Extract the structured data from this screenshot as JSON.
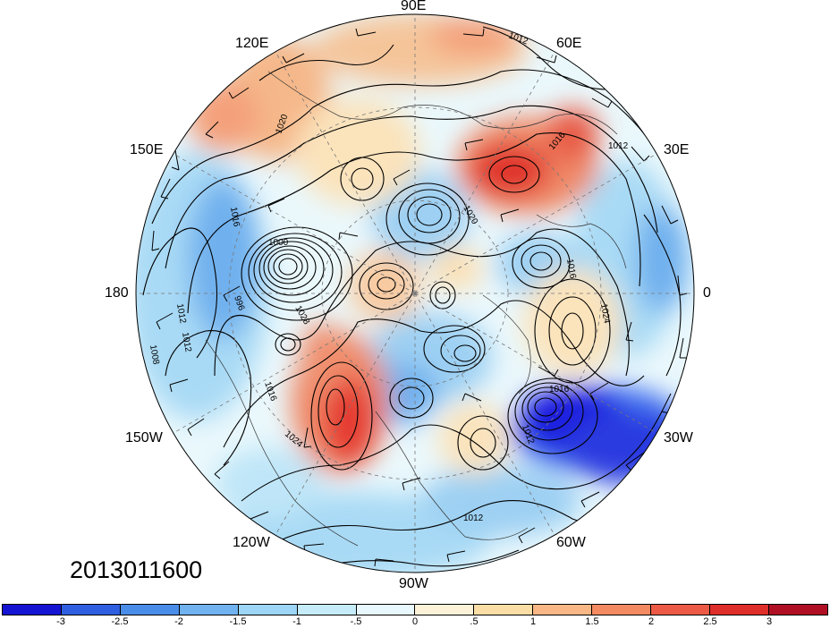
{
  "map": {
    "projection": "north-polar-stereographic",
    "longitude_labels": [
      {
        "key": "lon_90e",
        "text": "90E"
      },
      {
        "key": "lon_60e",
        "text": "60E"
      },
      {
        "key": "lon_30e",
        "text": "30E"
      },
      {
        "key": "lon_0",
        "text": "0"
      },
      {
        "key": "lon_30w",
        "text": "30W"
      },
      {
        "key": "lon_60w",
        "text": "60W"
      },
      {
        "key": "lon_90w",
        "text": "90W"
      },
      {
        "key": "lon_120w",
        "text": "120W"
      },
      {
        "key": "lon_150w",
        "text": "150W"
      },
      {
        "key": "lon_180",
        "text": "180"
      },
      {
        "key": "lon_150e",
        "text": "150E"
      },
      {
        "key": "lon_120e",
        "text": "120E"
      }
    ],
    "date_label": "2013011600",
    "contour_labels": [
      "1012",
      "1016",
      "1020",
      "1024",
      "1028",
      "1000",
      "996",
      "1008"
    ],
    "colors": {
      "strong_negative": "#1a1adf",
      "negative": "#6fb0ee",
      "weak_negative": "#cfeefa",
      "weak_positive": "#fbe7c2",
      "positive": "#f5a07a",
      "strong_positive": "#e53a30",
      "contour": "#000000"
    }
  },
  "colorbar": {
    "colors": [
      "#1414d2",
      "#2e5fe0",
      "#4a8de8",
      "#70b3f0",
      "#9dd6f6",
      "#c6ecfa",
      "#e8f8fc",
      "#fdf2d8",
      "#fbdda6",
      "#f8b784",
      "#f48a62",
      "#ec5a46",
      "#de2f2a",
      "#b00f24"
    ],
    "tick_labels": [
      "-3",
      "-2.5",
      "-2",
      "-1.5",
      "-1",
      "-.5",
      "0",
      ".5",
      "1",
      "1.5",
      "2",
      "2.5",
      "3"
    ]
  }
}
